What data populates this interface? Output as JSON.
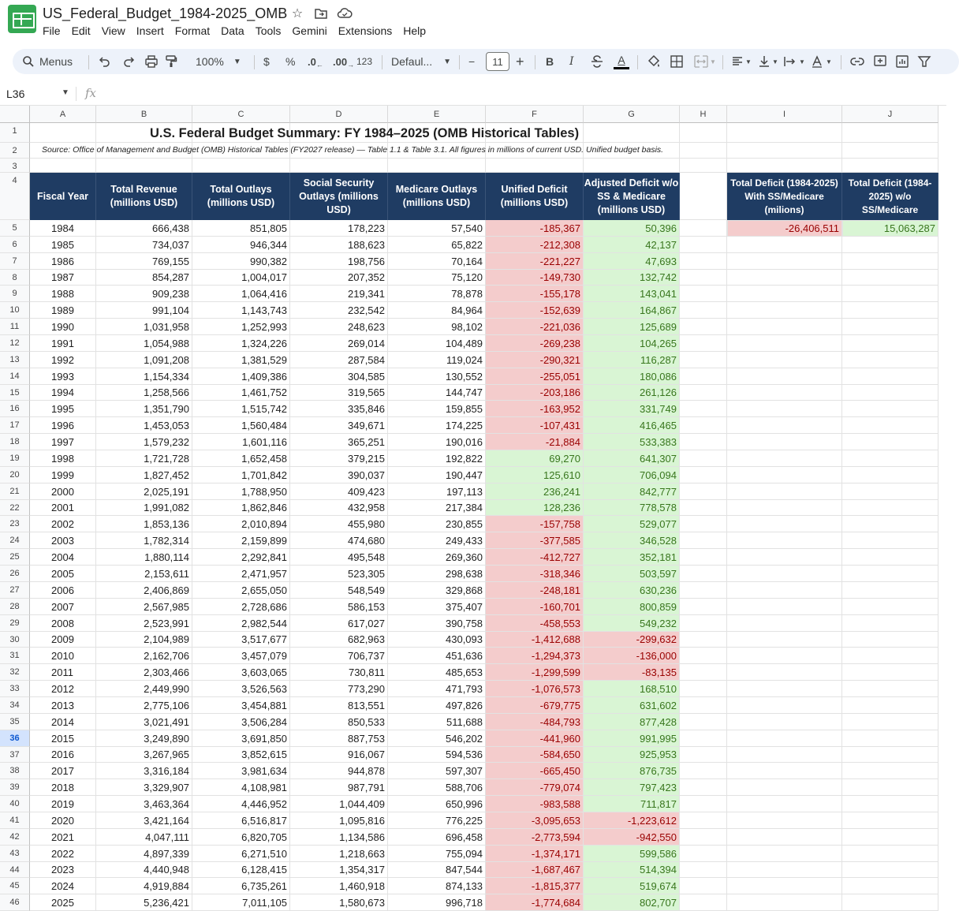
{
  "app": {
    "doc_title": "US_Federal_Budget_1984-2025_OMB",
    "menus": [
      "File",
      "Edit",
      "View",
      "Insert",
      "Format",
      "Data",
      "Tools",
      "Gemini",
      "Extensions",
      "Help"
    ]
  },
  "toolbar": {
    "menus_label": "Menus",
    "zoom": "100%",
    "currency": "$",
    "percent": "%",
    "dec_decrease": ".0",
    "dec_increase": ".00",
    "number_format": "123",
    "font_family": "Defaul...",
    "minus": "−",
    "font_size": "11",
    "plus": "+",
    "bold": "B",
    "italic": "I",
    "strike": "S",
    "text_color": "A"
  },
  "formula_bar": {
    "name_box": "L36",
    "fx": "fx"
  },
  "sheet": {
    "columns": [
      "A",
      "B",
      "C",
      "D",
      "E",
      "F",
      "G",
      "H",
      "I",
      "J"
    ],
    "row_numbers": [
      "1",
      "2",
      "3",
      "4",
      "5",
      "6",
      "7",
      "8",
      "9",
      "10",
      "11",
      "12",
      "13",
      "14",
      "15",
      "16",
      "17",
      "18",
      "19",
      "20",
      "21",
      "22",
      "23",
      "24",
      "25",
      "26",
      "27",
      "28",
      "29",
      "30",
      "31",
      "32",
      "33",
      "34",
      "35",
      "36",
      "37",
      "38",
      "39",
      "40",
      "41",
      "42",
      "43",
      "44",
      "45",
      "46"
    ],
    "title": "U.S. Federal Budget Summary: FY 1984–2025 (OMB Historical Tables)",
    "source": "Source: Office of Management and Budget (OMB) Historical Tables (FY2027 release) — Table 1.1 & Table 3.1. All figures in millions of current USD. Unified budget basis.",
    "headers": [
      "Fiscal Year",
      "Total Revenue (millions USD)",
      "Total Outlays (millions USD)",
      "Social Security Outlays (millions USD)",
      "Medicare Outlays (millions USD)",
      "Unified Deficit (millions USD)",
      "Adjusted Deficit w/o SS & Medicare (millions USD)"
    ],
    "summary_headers": [
      "Total Deficit (1984-2025) With SS/Medicare (milions)",
      "Total Deficit (1984-2025) w/o SS/Medicare"
    ],
    "summary_values": [
      "-26,406,511",
      "15,063,287"
    ],
    "rows": [
      [
        "1984",
        "666,438",
        "851,805",
        "178,223",
        "57,540",
        "-185,367",
        "50,396"
      ],
      [
        "1985",
        "734,037",
        "946,344",
        "188,623",
        "65,822",
        "-212,308",
        "42,137"
      ],
      [
        "1986",
        "769,155",
        "990,382",
        "198,756",
        "70,164",
        "-221,227",
        "47,693"
      ],
      [
        "1987",
        "854,287",
        "1,004,017",
        "207,352",
        "75,120",
        "-149,730",
        "132,742"
      ],
      [
        "1988",
        "909,238",
        "1,064,416",
        "219,341",
        "78,878",
        "-155,178",
        "143,041"
      ],
      [
        "1989",
        "991,104",
        "1,143,743",
        "232,542",
        "84,964",
        "-152,639",
        "164,867"
      ],
      [
        "1990",
        "1,031,958",
        "1,252,993",
        "248,623",
        "98,102",
        "-221,036",
        "125,689"
      ],
      [
        "1991",
        "1,054,988",
        "1,324,226",
        "269,014",
        "104,489",
        "-269,238",
        "104,265"
      ],
      [
        "1992",
        "1,091,208",
        "1,381,529",
        "287,584",
        "119,024",
        "-290,321",
        "116,287"
      ],
      [
        "1993",
        "1,154,334",
        "1,409,386",
        "304,585",
        "130,552",
        "-255,051",
        "180,086"
      ],
      [
        "1994",
        "1,258,566",
        "1,461,752",
        "319,565",
        "144,747",
        "-203,186",
        "261,126"
      ],
      [
        "1995",
        "1,351,790",
        "1,515,742",
        "335,846",
        "159,855",
        "-163,952",
        "331,749"
      ],
      [
        "1996",
        "1,453,053",
        "1,560,484",
        "349,671",
        "174,225",
        "-107,431",
        "416,465"
      ],
      [
        "1997",
        "1,579,232",
        "1,601,116",
        "365,251",
        "190,016",
        "-21,884",
        "533,383"
      ],
      [
        "1998",
        "1,721,728",
        "1,652,458",
        "379,215",
        "192,822",
        "69,270",
        "641,307"
      ],
      [
        "1999",
        "1,827,452",
        "1,701,842",
        "390,037",
        "190,447",
        "125,610",
        "706,094"
      ],
      [
        "2000",
        "2,025,191",
        "1,788,950",
        "409,423",
        "197,113",
        "236,241",
        "842,777"
      ],
      [
        "2001",
        "1,991,082",
        "1,862,846",
        "432,958",
        "217,384",
        "128,236",
        "778,578"
      ],
      [
        "2002",
        "1,853,136",
        "2,010,894",
        "455,980",
        "230,855",
        "-157,758",
        "529,077"
      ],
      [
        "2003",
        "1,782,314",
        "2,159,899",
        "474,680",
        "249,433",
        "-377,585",
        "346,528"
      ],
      [
        "2004",
        "1,880,114",
        "2,292,841",
        "495,548",
        "269,360",
        "-412,727",
        "352,181"
      ],
      [
        "2005",
        "2,153,611",
        "2,471,957",
        "523,305",
        "298,638",
        "-318,346",
        "503,597"
      ],
      [
        "2006",
        "2,406,869",
        "2,655,050",
        "548,549",
        "329,868",
        "-248,181",
        "630,236"
      ],
      [
        "2007",
        "2,567,985",
        "2,728,686",
        "586,153",
        "375,407",
        "-160,701",
        "800,859"
      ],
      [
        "2008",
        "2,523,991",
        "2,982,544",
        "617,027",
        "390,758",
        "-458,553",
        "549,232"
      ],
      [
        "2009",
        "2,104,989",
        "3,517,677",
        "682,963",
        "430,093",
        "-1,412,688",
        "-299,632"
      ],
      [
        "2010",
        "2,162,706",
        "3,457,079",
        "706,737",
        "451,636",
        "-1,294,373",
        "-136,000"
      ],
      [
        "2011",
        "2,303,466",
        "3,603,065",
        "730,811",
        "485,653",
        "-1,299,599",
        "-83,135"
      ],
      [
        "2012",
        "2,449,990",
        "3,526,563",
        "773,290",
        "471,793",
        "-1,076,573",
        "168,510"
      ],
      [
        "2013",
        "2,775,106",
        "3,454,881",
        "813,551",
        "497,826",
        "-679,775",
        "631,602"
      ],
      [
        "2014",
        "3,021,491",
        "3,506,284",
        "850,533",
        "511,688",
        "-484,793",
        "877,428"
      ],
      [
        "2015",
        "3,249,890",
        "3,691,850",
        "887,753",
        "546,202",
        "-441,960",
        "991,995"
      ],
      [
        "2016",
        "3,267,965",
        "3,852,615",
        "916,067",
        "594,536",
        "-584,650",
        "925,953"
      ],
      [
        "2017",
        "3,316,184",
        "3,981,634",
        "944,878",
        "597,307",
        "-665,450",
        "876,735"
      ],
      [
        "2018",
        "3,329,907",
        "4,108,981",
        "987,791",
        "588,706",
        "-779,074",
        "797,423"
      ],
      [
        "2019",
        "3,463,364",
        "4,446,952",
        "1,044,409",
        "650,996",
        "-983,588",
        "711,817"
      ],
      [
        "2020",
        "3,421,164",
        "6,516,817",
        "1,095,816",
        "776,225",
        "-3,095,653",
        "-1,223,612"
      ],
      [
        "2021",
        "4,047,111",
        "6,820,705",
        "1,134,586",
        "696,458",
        "-2,773,594",
        "-942,550"
      ],
      [
        "2022",
        "4,897,339",
        "6,271,510",
        "1,218,663",
        "755,094",
        "-1,374,171",
        "599,586"
      ],
      [
        "2023",
        "4,440,948",
        "6,128,415",
        "1,354,317",
        "847,544",
        "-1,687,467",
        "514,394"
      ],
      [
        "2024",
        "4,919,884",
        "6,735,261",
        "1,460,918",
        "874,133",
        "-1,815,377",
        "519,674"
      ],
      [
        "2025",
        "5,236,421",
        "7,011,105",
        "1,580,673",
        "996,718",
        "-1,774,684",
        "802,707"
      ]
    ]
  },
  "colors": {
    "header_bg": "#1f3c63",
    "negative_bg": "#f4cccc",
    "negative_text": "#990000",
    "positive_bg": "#d9f5d4",
    "positive_text": "#38761d",
    "brand": "#34a853"
  },
  "icons": [
    "sheets-logo",
    "star-icon",
    "move-to-folder-icon",
    "cloud-status-icon",
    "search-icon",
    "undo-icon",
    "redo-icon",
    "print-icon",
    "paint-format-icon",
    "zoom-dropdown-icon",
    "font-dropdown-icon",
    "strikethrough-icon",
    "fill-color-icon",
    "borders-icon",
    "merge-cells-icon",
    "horizontal-align-icon",
    "vertical-align-icon",
    "text-wrap-icon",
    "text-rotation-icon",
    "link-icon",
    "comment-icon",
    "chart-icon",
    "filter-icon"
  ]
}
